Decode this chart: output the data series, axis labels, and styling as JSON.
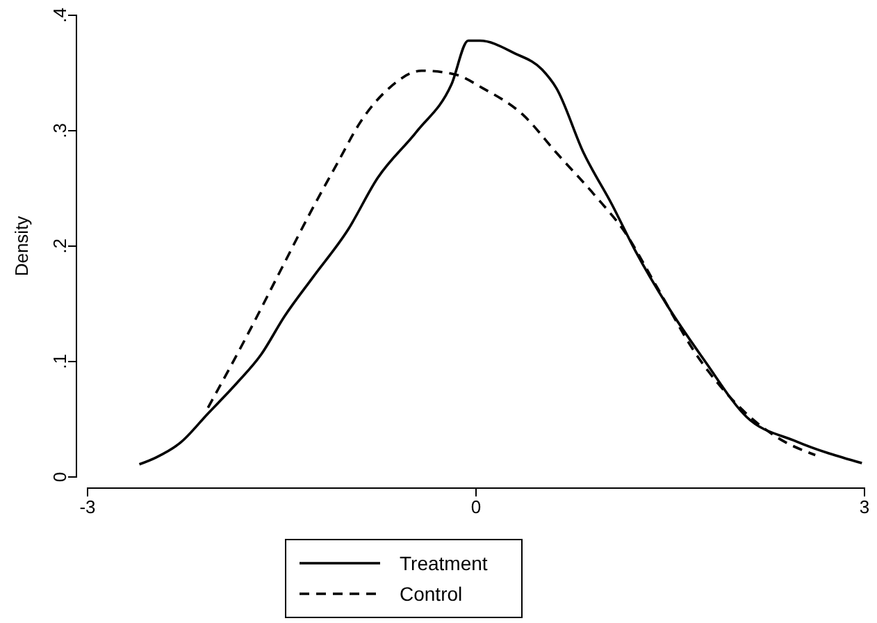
{
  "chart_data": {
    "type": "line",
    "ylabel": "Density",
    "xlim": [
      -3,
      3
    ],
    "xticks": [
      -3,
      0,
      3
    ],
    "ylim": [
      0,
      0.4
    ],
    "yticks": [
      {
        "value": 0,
        "label": "0"
      },
      {
        "value": 0.1,
        "label": ".1"
      },
      {
        "value": 0.2,
        "label": ".2"
      },
      {
        "value": 0.3,
        "label": ".3"
      },
      {
        "value": 0.4,
        "label": ".4"
      }
    ],
    "legend": "bottom",
    "grid": false,
    "series": [
      {
        "name": "Treatment",
        "color": "#000000",
        "line_style": "solid",
        "x": [
          -2.6,
          -2.47,
          -2.28,
          -2.07,
          -1.85,
          -1.66,
          -1.48,
          -1.26,
          -0.99,
          -0.76,
          -0.46,
          -0.19,
          -0.06,
          0.03,
          0.3,
          0.51,
          0.62,
          0.83,
          1.05,
          1.23,
          1.48,
          1.77,
          2.09,
          2.47,
          2.98
        ],
        "values": [
          0.011,
          0.017,
          0.03,
          0.055,
          0.081,
          0.106,
          0.139,
          0.173,
          0.214,
          0.259,
          0.299,
          0.34,
          0.378,
          0.378,
          0.367,
          0.353,
          0.337,
          0.281,
          0.236,
          0.196,
          0.148,
          0.1,
          0.052,
          0.031,
          0.012
        ]
      },
      {
        "name": "Control",
        "color": "#000000",
        "line_style": "dashed",
        "x": [
          -2.07,
          -1.78,
          -1.5,
          -1.28,
          -1.07,
          -0.89,
          -0.67,
          -0.42,
          -0.17,
          0.05,
          0.37,
          0.62,
          0.91,
          1.15,
          1.4,
          1.69,
          2.04,
          2.33,
          2.62
        ],
        "values": [
          0.06,
          0.12,
          0.181,
          0.229,
          0.272,
          0.308,
          0.337,
          0.352,
          0.349,
          0.337,
          0.313,
          0.281,
          0.245,
          0.212,
          0.164,
          0.108,
          0.06,
          0.034,
          0.019
        ]
      }
    ]
  }
}
